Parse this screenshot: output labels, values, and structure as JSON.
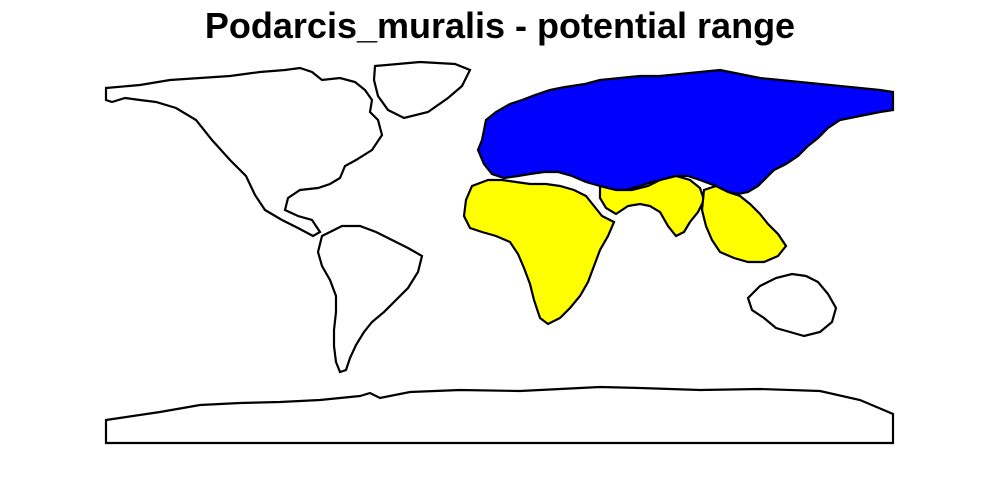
{
  "title": "Podarcis_muralis - potential range",
  "colors": {
    "background": "#ffffff",
    "outline": "#000000",
    "unfilled_land": "#ffffff",
    "range_primary": "#0000ff",
    "range_secondary": "#ffff00"
  },
  "regions": [
    {
      "name": "north-america",
      "fill_key": "unfilled_land"
    },
    {
      "name": "greenland",
      "fill_key": "unfilled_land"
    },
    {
      "name": "south-america",
      "fill_key": "unfilled_land"
    },
    {
      "name": "eurasia",
      "fill_key": "range_primary"
    },
    {
      "name": "africa",
      "fill_key": "range_secondary"
    },
    {
      "name": "south-asia",
      "fill_key": "range_secondary"
    },
    {
      "name": "southeast-asia",
      "fill_key": "range_secondary"
    },
    {
      "name": "australia",
      "fill_key": "unfilled_land"
    },
    {
      "name": "antarctica",
      "fill_key": "unfilled_land"
    }
  ]
}
